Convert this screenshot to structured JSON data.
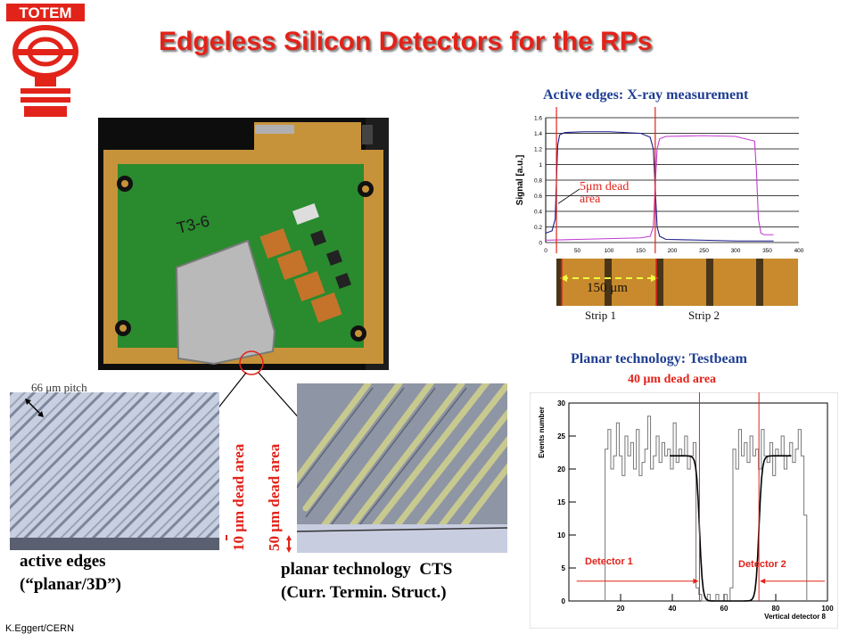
{
  "logo": {
    "text": "TOTEM"
  },
  "title": "Edgeless Silicon Detectors for the RPs",
  "footer": "K.Eggert/CERN",
  "board": {
    "label": "T3-6"
  },
  "pitch_label": "66 μm pitch",
  "active_edges_caption": [
    "active edges",
    "(“planar/3D”)"
  ],
  "planar_cts_caption": [
    "planar technology  CTS",
    "(Curr. Termin. Struct.)"
  ],
  "dead_area_10": "10 μm dead area",
  "dead_area_50": "50 μm dead area",
  "xray": {
    "heading": "Active edges: X-ray measurement",
    "annotation": [
      "5μm dead",
      "area"
    ],
    "scale_label": "150 μm",
    "strip_labels": [
      "Strip 1",
      "Strip 2"
    ]
  },
  "testbeam": {
    "heading": "Planar technology: Testbeam",
    "dead_label": "40 μm dead area",
    "detector_labels": [
      "Detector 1",
      "Detector 2"
    ]
  },
  "chart_data": [
    {
      "type": "line",
      "title": "Active edges: X-ray measurement",
      "xlabel": "",
      "ylabel": "Signal [a.u.]",
      "xlim": [
        0,
        400
      ],
      "ylim": [
        0,
        1.6
      ],
      "x_ticks": [
        0,
        50,
        100,
        150,
        200,
        250,
        300,
        350,
        400
      ],
      "y_ticks": [
        0,
        0.2,
        0.4,
        0.6,
        0.8,
        1.0,
        1.2,
        1.4,
        1.6
      ],
      "y_tick_labels": [
        "0",
        "0.2",
        "0.4",
        "0.6",
        "0.8",
        "1",
        "1.2",
        "1.4",
        "1.6"
      ],
      "grid": true,
      "colors": [
        "#1a1a8c",
        "#c23bd2"
      ],
      "series": [
        {
          "x": [
            0,
            10,
            15,
            17,
            19,
            22,
            30,
            60,
            100,
            150,
            165,
            170,
            173,
            176,
            180,
            190,
            250,
            300,
            350,
            360
          ],
          "y": [
            0.12,
            0.15,
            0.3,
            0.8,
            1.25,
            1.38,
            1.41,
            1.42,
            1.42,
            1.4,
            1.35,
            1.2,
            0.7,
            0.2,
            0.08,
            0.04,
            0.03,
            0.02,
            0.02,
            0.02
          ]
        },
        {
          "x": [
            0,
            50,
            100,
            150,
            165,
            170,
            173,
            176,
            180,
            190,
            250,
            300,
            330,
            333,
            336,
            340,
            345,
            360
          ],
          "y": [
            0.03,
            0.04,
            0.05,
            0.06,
            0.08,
            0.2,
            0.75,
            1.2,
            1.33,
            1.36,
            1.37,
            1.36,
            1.3,
            0.9,
            0.3,
            0.12,
            0.1,
            0.1
          ]
        }
      ],
      "vlines": [
        17,
        173
      ]
    },
    {
      "type": "bar",
      "title": "Planar technology: Testbeam",
      "xlabel": "Vertical detector 8",
      "ylabel": "Events number",
      "xlim": [
        0,
        100
      ],
      "ylim": [
        0,
        30
      ],
      "x_ticks": [
        20,
        40,
        60,
        80,
        100
      ],
      "y_ticks": [
        0,
        5,
        10,
        15,
        20,
        25,
        30
      ],
      "histogram_values": [
        23,
        26,
        20,
        22,
        27,
        22,
        19,
        25,
        22,
        24,
        20,
        26,
        19,
        21,
        23,
        28,
        20,
        22,
        25,
        21,
        24,
        22,
        23,
        20,
        27,
        21,
        23,
        22,
        25,
        20,
        22,
        24,
        2,
        1,
        0,
        0,
        1,
        0,
        0,
        1,
        0,
        0,
        1,
        0,
        2,
        23,
        20,
        26,
        22,
        24,
        21,
        25,
        22,
        23,
        20,
        26,
        22,
        21,
        24,
        19,
        23,
        22,
        25,
        20,
        22,
        24,
        21,
        23,
        26,
        22,
        13
      ],
      "fit_left": {
        "plateau": 22,
        "edge_x": 50.5,
        "start_x": 39
      },
      "fit_right": {
        "plateau": 22,
        "edge_x": 73.5,
        "end_x": 86
      },
      "vlines": [
        50.5,
        73.5
      ],
      "colors": [
        "#777777",
        "#000000",
        "#e2231a"
      ]
    }
  ]
}
